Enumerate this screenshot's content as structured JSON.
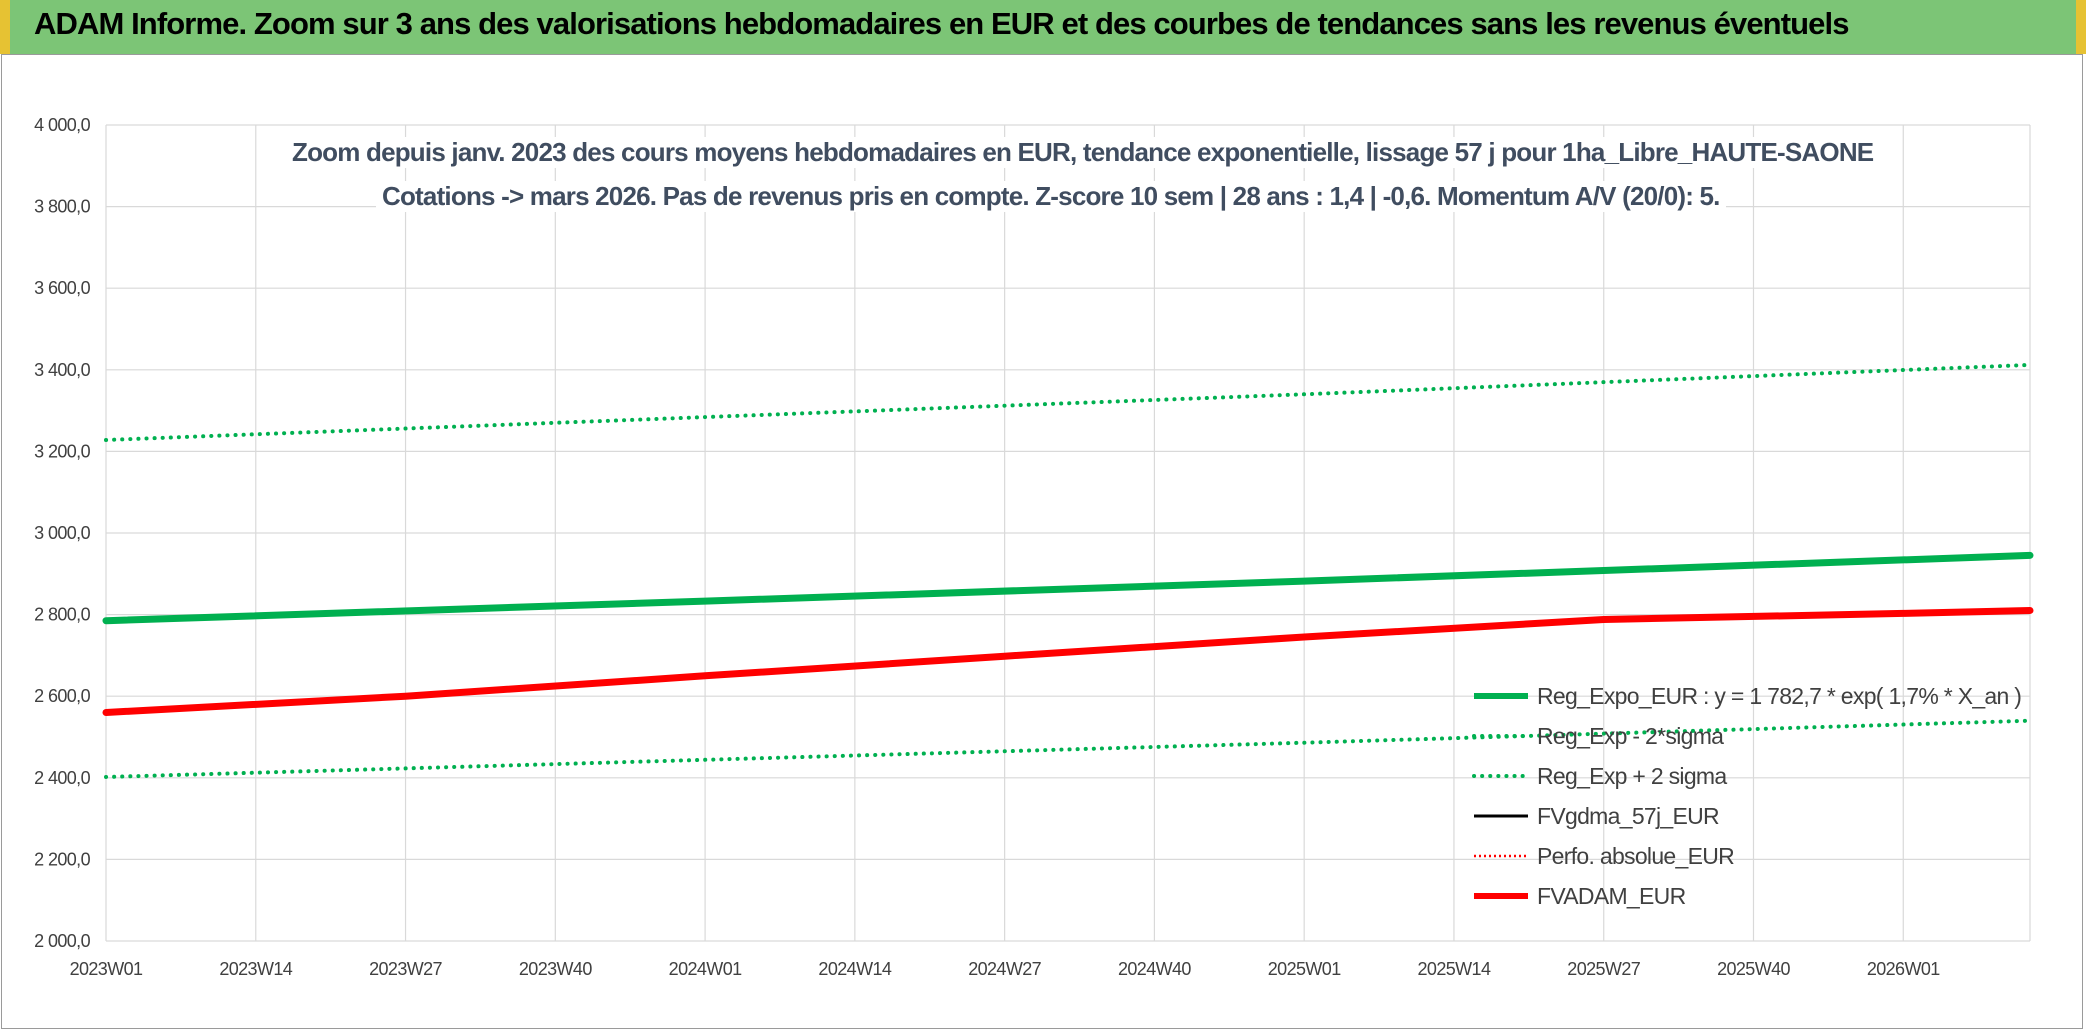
{
  "banner": {
    "title": "ADAM Informe. Zoom sur 3 ans des valorisations hebdomadaires en EUR et des courbes de tendances sans les revenus éventuels"
  },
  "colors": {
    "banner_bg": "#7cc576",
    "banner_border": "#e6c233",
    "green": "#00b050",
    "red": "#ff0000",
    "black": "#000000",
    "title_text": "#404d60"
  },
  "chart_data": {
    "type": "line",
    "title_line1": "Zoom depuis janv. 2023 des cours moyens hebdomadaires en EUR, tendance exponentielle, lissage 57 j pour 1ha_Libre_HAUTE-SAONE",
    "title_line2": "Cotations -> mars 2026. Pas de revenus pris en compte. Z-score 10 sem | 28 ans : 1,4 | -0,6. Momentum A/V (20/0): 5.",
    "xlabel": "",
    "ylabel": "",
    "ylim": [
      2000,
      4000
    ],
    "y_ticks": [
      "2 000,0",
      "2 200,0",
      "2 400,0",
      "2 600,0",
      "2 800,0",
      "3 000,0",
      "3 200,0",
      "3 400,0",
      "3 600,0",
      "3 800,0",
      "4 000,0"
    ],
    "x_ticks": [
      "2023W01",
      "2023W14",
      "2023W27",
      "2023W40",
      "2024W01",
      "2024W14",
      "2024W27",
      "2024W40",
      "2025W01",
      "2025W14",
      "2025W27",
      "2025W40",
      "2026W01"
    ],
    "grid": true,
    "legend_position": "right",
    "series": [
      {
        "name": "Reg_Expo_EUR : y = 1 782,7 * exp( 1,7% *  X_an )",
        "style": "solid-thick",
        "color": "#00b050",
        "points": [
          [
            "2023W01",
            2785
          ],
          [
            "2024W01",
            2833
          ],
          [
            "2025W01",
            2882
          ],
          [
            "2026W12",
            2945
          ]
        ]
      },
      {
        "name": "Reg_Exp - 2*sigma",
        "style": "dotted",
        "color": "#00b050",
        "points": [
          [
            "2023W01",
            2402
          ],
          [
            "2024W01",
            2444
          ],
          [
            "2025W01",
            2486
          ],
          [
            "2026W12",
            2540
          ]
        ]
      },
      {
        "name": "Reg_Exp + 2 sigma",
        "style": "dotted",
        "color": "#00b050",
        "points": [
          [
            "2023W01",
            3228
          ],
          [
            "2024W01",
            3284
          ],
          [
            "2025W01",
            3340
          ],
          [
            "2026W12",
            3412
          ]
        ]
      },
      {
        "name": "FVgdma_57j_EUR",
        "style": "solid",
        "color": "#000000",
        "points": []
      },
      {
        "name": "Perfo. absolue_EUR",
        "style": "dotted-thin",
        "color": "#ff0000",
        "points": []
      },
      {
        "name": "FVADAM_EUR",
        "style": "solid-thick",
        "color": "#ff0000",
        "points": [
          [
            "2023W01",
            2560
          ],
          [
            "2023W27",
            2600
          ],
          [
            "2024W01",
            2650
          ],
          [
            "2024W27",
            2698
          ],
          [
            "2025W01",
            2745
          ],
          [
            "2025W27",
            2788
          ],
          [
            "2026W01",
            2803
          ],
          [
            "2026W12",
            2810
          ]
        ]
      }
    ]
  }
}
